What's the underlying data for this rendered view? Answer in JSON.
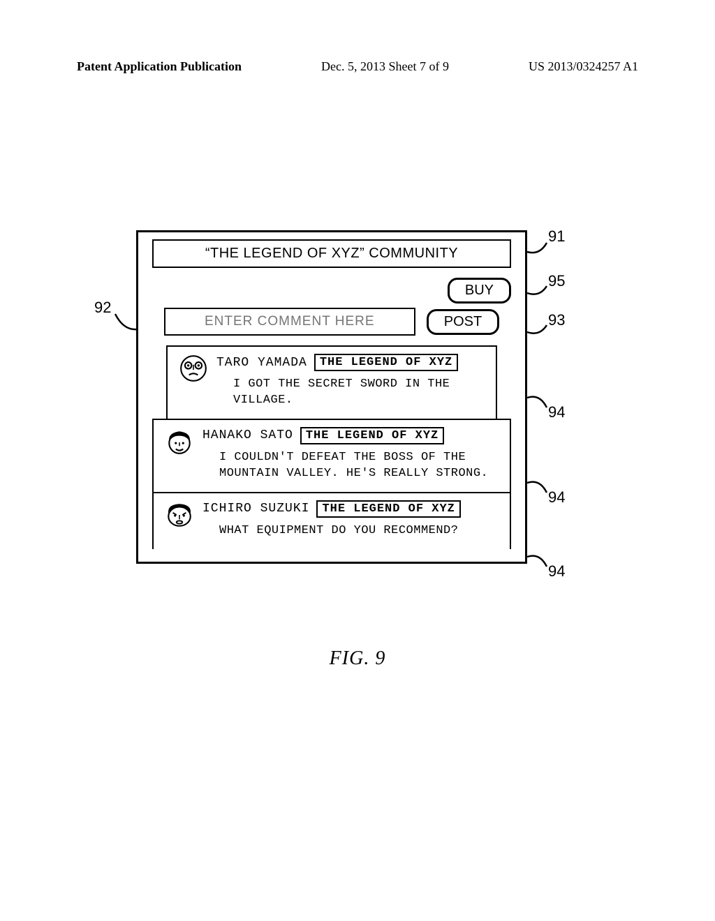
{
  "header": {
    "left": "Patent Application Publication",
    "mid": "Dec. 5, 2013  Sheet 7 of 9",
    "right": "US 2013/0324257 A1"
  },
  "panel": {
    "title": "“THE LEGEND OF XYZ” COMMUNITY",
    "buy_label": "BUY",
    "comment_placeholder": "ENTER COMMENT HERE",
    "post_label": "POST"
  },
  "posts": [
    {
      "user": "TARO YAMADA",
      "tag": "THE LEGEND OF XYZ",
      "text": "I GOT THE SECRET SWORD IN THE VILLAGE."
    },
    {
      "user": "HANAKO SATO",
      "tag": "THE LEGEND OF XYZ",
      "text": "I COULDN'T DEFEAT THE BOSS OF THE\nMOUNTAIN VALLEY.  HE'S REALLY STRONG."
    },
    {
      "user": "ICHIRO SUZUKI",
      "tag": "THE LEGEND OF XYZ",
      "text": "WHAT EQUIPMENT DO YOU RECOMMEND?"
    }
  ],
  "callouts": {
    "c91": "91",
    "c92": "92",
    "c93": "93",
    "c94": "94",
    "c95": "95"
  },
  "caption": "FIG. 9"
}
